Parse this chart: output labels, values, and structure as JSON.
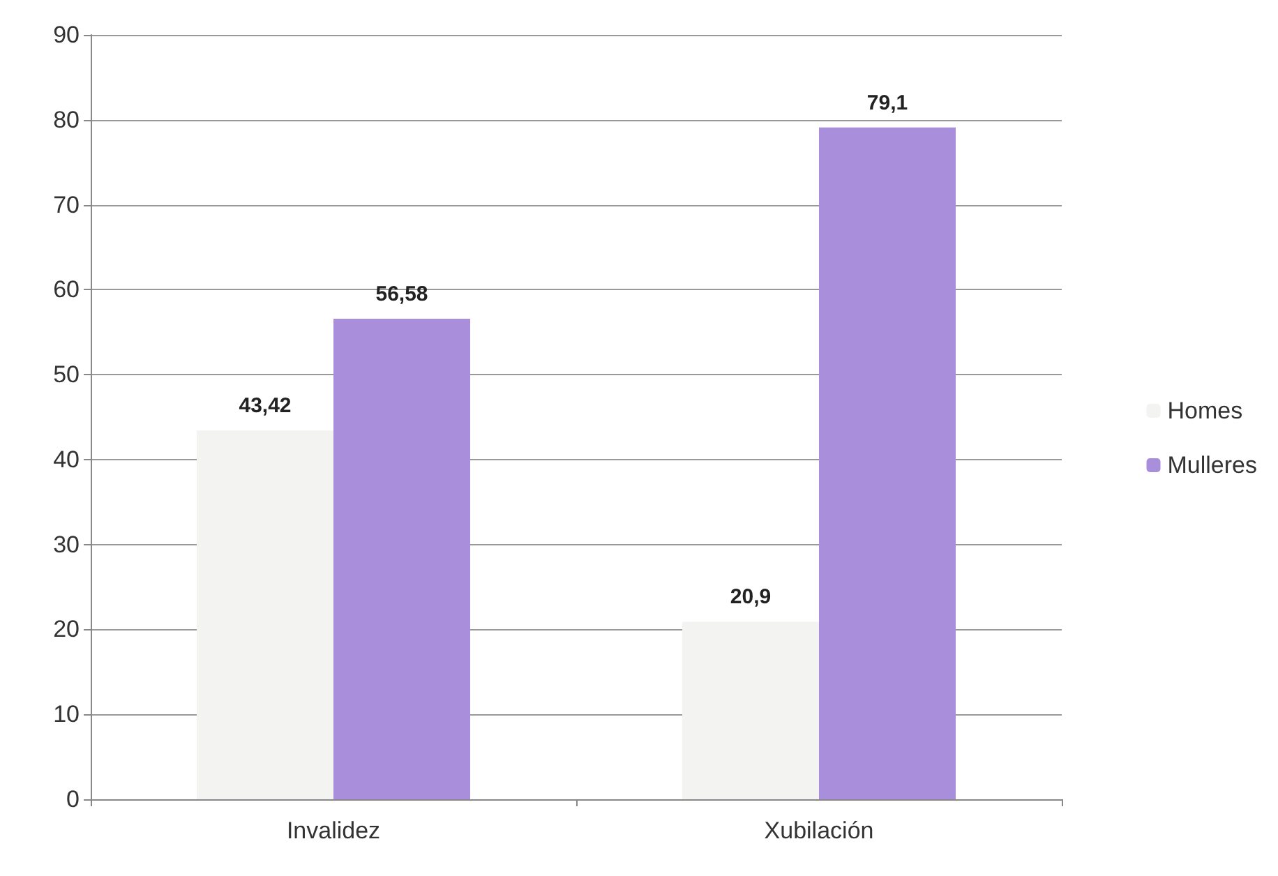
{
  "chart_data": {
    "type": "bar",
    "categories": [
      "Invalidez",
      "Xubilación"
    ],
    "series": [
      {
        "name": "Homes",
        "color": "#f3f3f1",
        "values": [
          43.42,
          20.9
        ],
        "value_labels": [
          "43,42",
          "20,9"
        ]
      },
      {
        "name": "Mulleres",
        "color": "#a98fdb",
        "values": [
          56.58,
          79.1
        ],
        "value_labels": [
          "56,58",
          "79,1"
        ]
      }
    ],
    "ylim": [
      0,
      90
    ],
    "yticks": [
      0,
      10,
      20,
      30,
      40,
      50,
      60,
      70,
      80,
      90
    ],
    "grid": "y",
    "legend": "right"
  }
}
